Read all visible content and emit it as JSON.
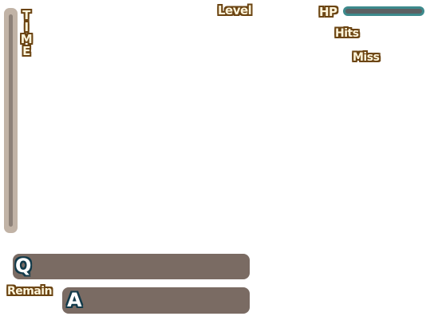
{
  "hud": {
    "time_letters": [
      "T",
      "I",
      "M",
      "E"
    ],
    "time_remaining_fraction": 1.0,
    "level_label": "Level",
    "hp_label": "HP",
    "hits_label": "Hits",
    "miss_label": "Miss",
    "hp_fraction": 1.0,
    "hp_bar_color": "#3d8a8c"
  },
  "quiz": {
    "question_marker": "Q",
    "answer_marker": "A",
    "remain_label": "Remain",
    "panel_color": "#7a6b63"
  }
}
